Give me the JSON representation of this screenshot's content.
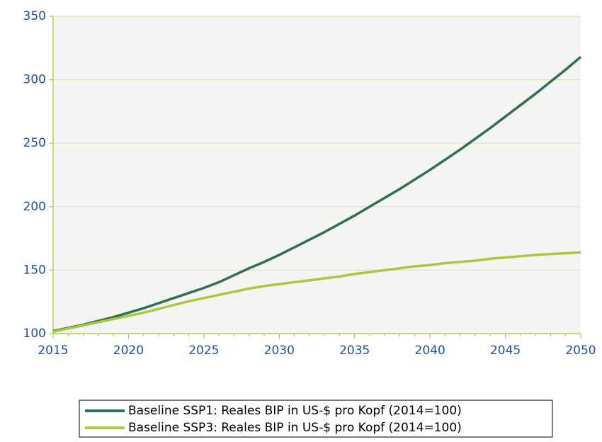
{
  "chart_data": {
    "type": "line",
    "x": [
      2015,
      2016,
      2017,
      2018,
      2019,
      2020,
      2021,
      2022,
      2023,
      2024,
      2025,
      2026,
      2027,
      2028,
      2029,
      2030,
      2031,
      2032,
      2033,
      2034,
      2035,
      2036,
      2037,
      2038,
      2039,
      2040,
      2041,
      2042,
      2043,
      2044,
      2045,
      2046,
      2047,
      2048,
      2049,
      2050
    ],
    "series": [
      {
        "name": "Baseline SSP1: Reales BIP in US-$ pro Kopf (2014=100)",
        "color": "#2e7052",
        "values": [
          102,
          104.5,
          107,
          110,
          113,
          116.5,
          120,
          124,
          128,
          132,
          136,
          140.5,
          146,
          151.5,
          156.5,
          162,
          168,
          174,
          180,
          186.5,
          193,
          200,
          207,
          214,
          221.5,
          229,
          237,
          245,
          253.5,
          262,
          271,
          280,
          289,
          298.5,
          308,
          318
        ]
      },
      {
        "name": "Baseline SSP3: Reales BIP in US-$ pro Kopf (2014=100)",
        "color": "#a8c93c",
        "values": [
          101.5,
          104,
          106.5,
          109,
          111.5,
          114,
          116.5,
          119.5,
          122.5,
          125.5,
          128,
          130.5,
          133,
          135.5,
          137.5,
          139,
          140.5,
          142,
          143.5,
          145,
          147,
          148.5,
          150,
          151.5,
          153,
          154,
          155.5,
          156.5,
          157.5,
          159,
          160,
          161,
          162,
          162.7,
          163.3,
          164
        ]
      }
    ],
    "xlim": [
      2015,
      2050
    ],
    "xticks": [
      2015,
      2020,
      2025,
      2030,
      2035,
      2040,
      2045,
      2050
    ],
    "ylim": [
      100,
      350
    ],
    "yticks": [
      100,
      150,
      200,
      250,
      300,
      350
    ],
    "grid": true,
    "legend": "bottom"
  }
}
